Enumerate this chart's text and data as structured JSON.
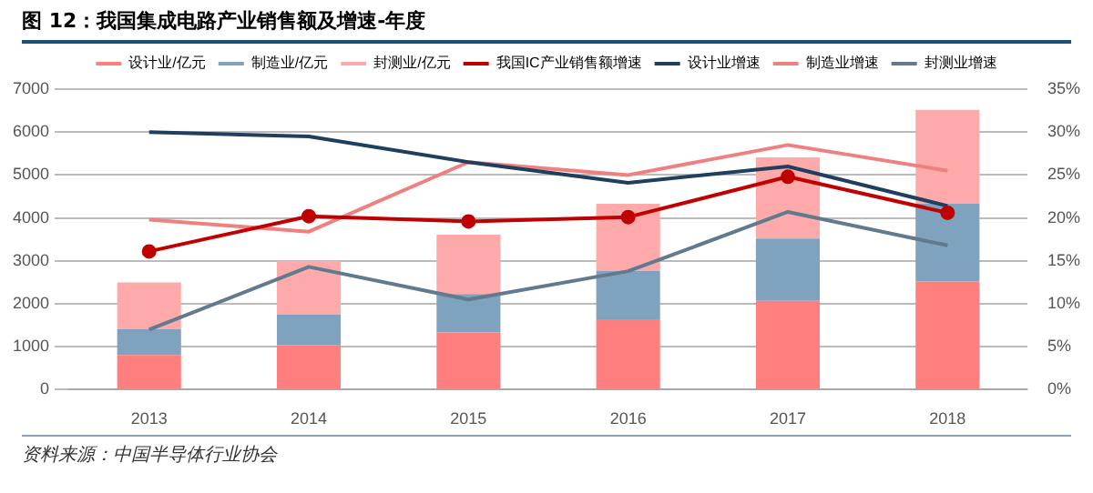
{
  "chart_data": {
    "type": "bar",
    "title": "图 12：我国集成电路产业销售额及增速-年度",
    "categories": [
      "2013",
      "2014",
      "2015",
      "2016",
      "2017",
      "2018"
    ],
    "stacked": true,
    "grid": "y",
    "legend": "top",
    "ylim": [
      0,
      7000
    ],
    "yticks": [
      0,
      1000,
      2000,
      3000,
      4000,
      5000,
      6000,
      7000
    ],
    "y2lim": [
      0,
      35
    ],
    "y2ticks": [
      {
        "value": 0,
        "label": "0%"
      },
      {
        "value": 5,
        "label": "5%"
      },
      {
        "value": 10,
        "label": "10%"
      },
      {
        "value": 15,
        "label": "15%"
      },
      {
        "value": 20,
        "label": "20%"
      },
      {
        "value": 25,
        "label": "25%"
      },
      {
        "value": 30,
        "label": "30%"
      },
      {
        "value": 35,
        "label": "35%"
      }
    ],
    "series": [
      {
        "name": "设计业/亿元",
        "color": "#ff7f7f",
        "values": [
          810,
          1040,
          1330,
          1640,
          2070,
          2520
        ]
      },
      {
        "name": "制造业/亿元",
        "color": "#7fa3bf",
        "values": [
          600,
          710,
          900,
          1130,
          1450,
          1810
        ]
      },
      {
        "name": "封测业/亿元",
        "color": "#ffaaaa",
        "values": [
          1090,
          1250,
          1380,
          1560,
          1890,
          2190
        ]
      },
      {
        "name": "我国IC产业销售额增速",
        "type": "line",
        "axis": "y2",
        "marker": "circle",
        "color": "#c00000",
        "values": [
          16.1,
          20.2,
          19.6,
          20.1,
          24.8,
          20.6
        ]
      },
      {
        "name": "设计业增速",
        "type": "line",
        "axis": "y2",
        "marker": "none",
        "color": "#1f3f5f",
        "values": [
          30.0,
          29.5,
          26.5,
          24.1,
          26.0,
          21.4
        ]
      },
      {
        "name": "制造业增速",
        "type": "line",
        "axis": "y2",
        "marker": "none",
        "color": "#f08080",
        "values": [
          19.8,
          18.4,
          26.5,
          25.0,
          28.5,
          25.5
        ]
      },
      {
        "name": "封测业增速",
        "type": "line",
        "axis": "y2",
        "marker": "none",
        "color": "#627a8e",
        "values": [
          7.0,
          14.3,
          10.5,
          13.8,
          20.7,
          16.8
        ]
      }
    ],
    "annotations": [
      "资料来源：中国半导体行业协会"
    ]
  }
}
